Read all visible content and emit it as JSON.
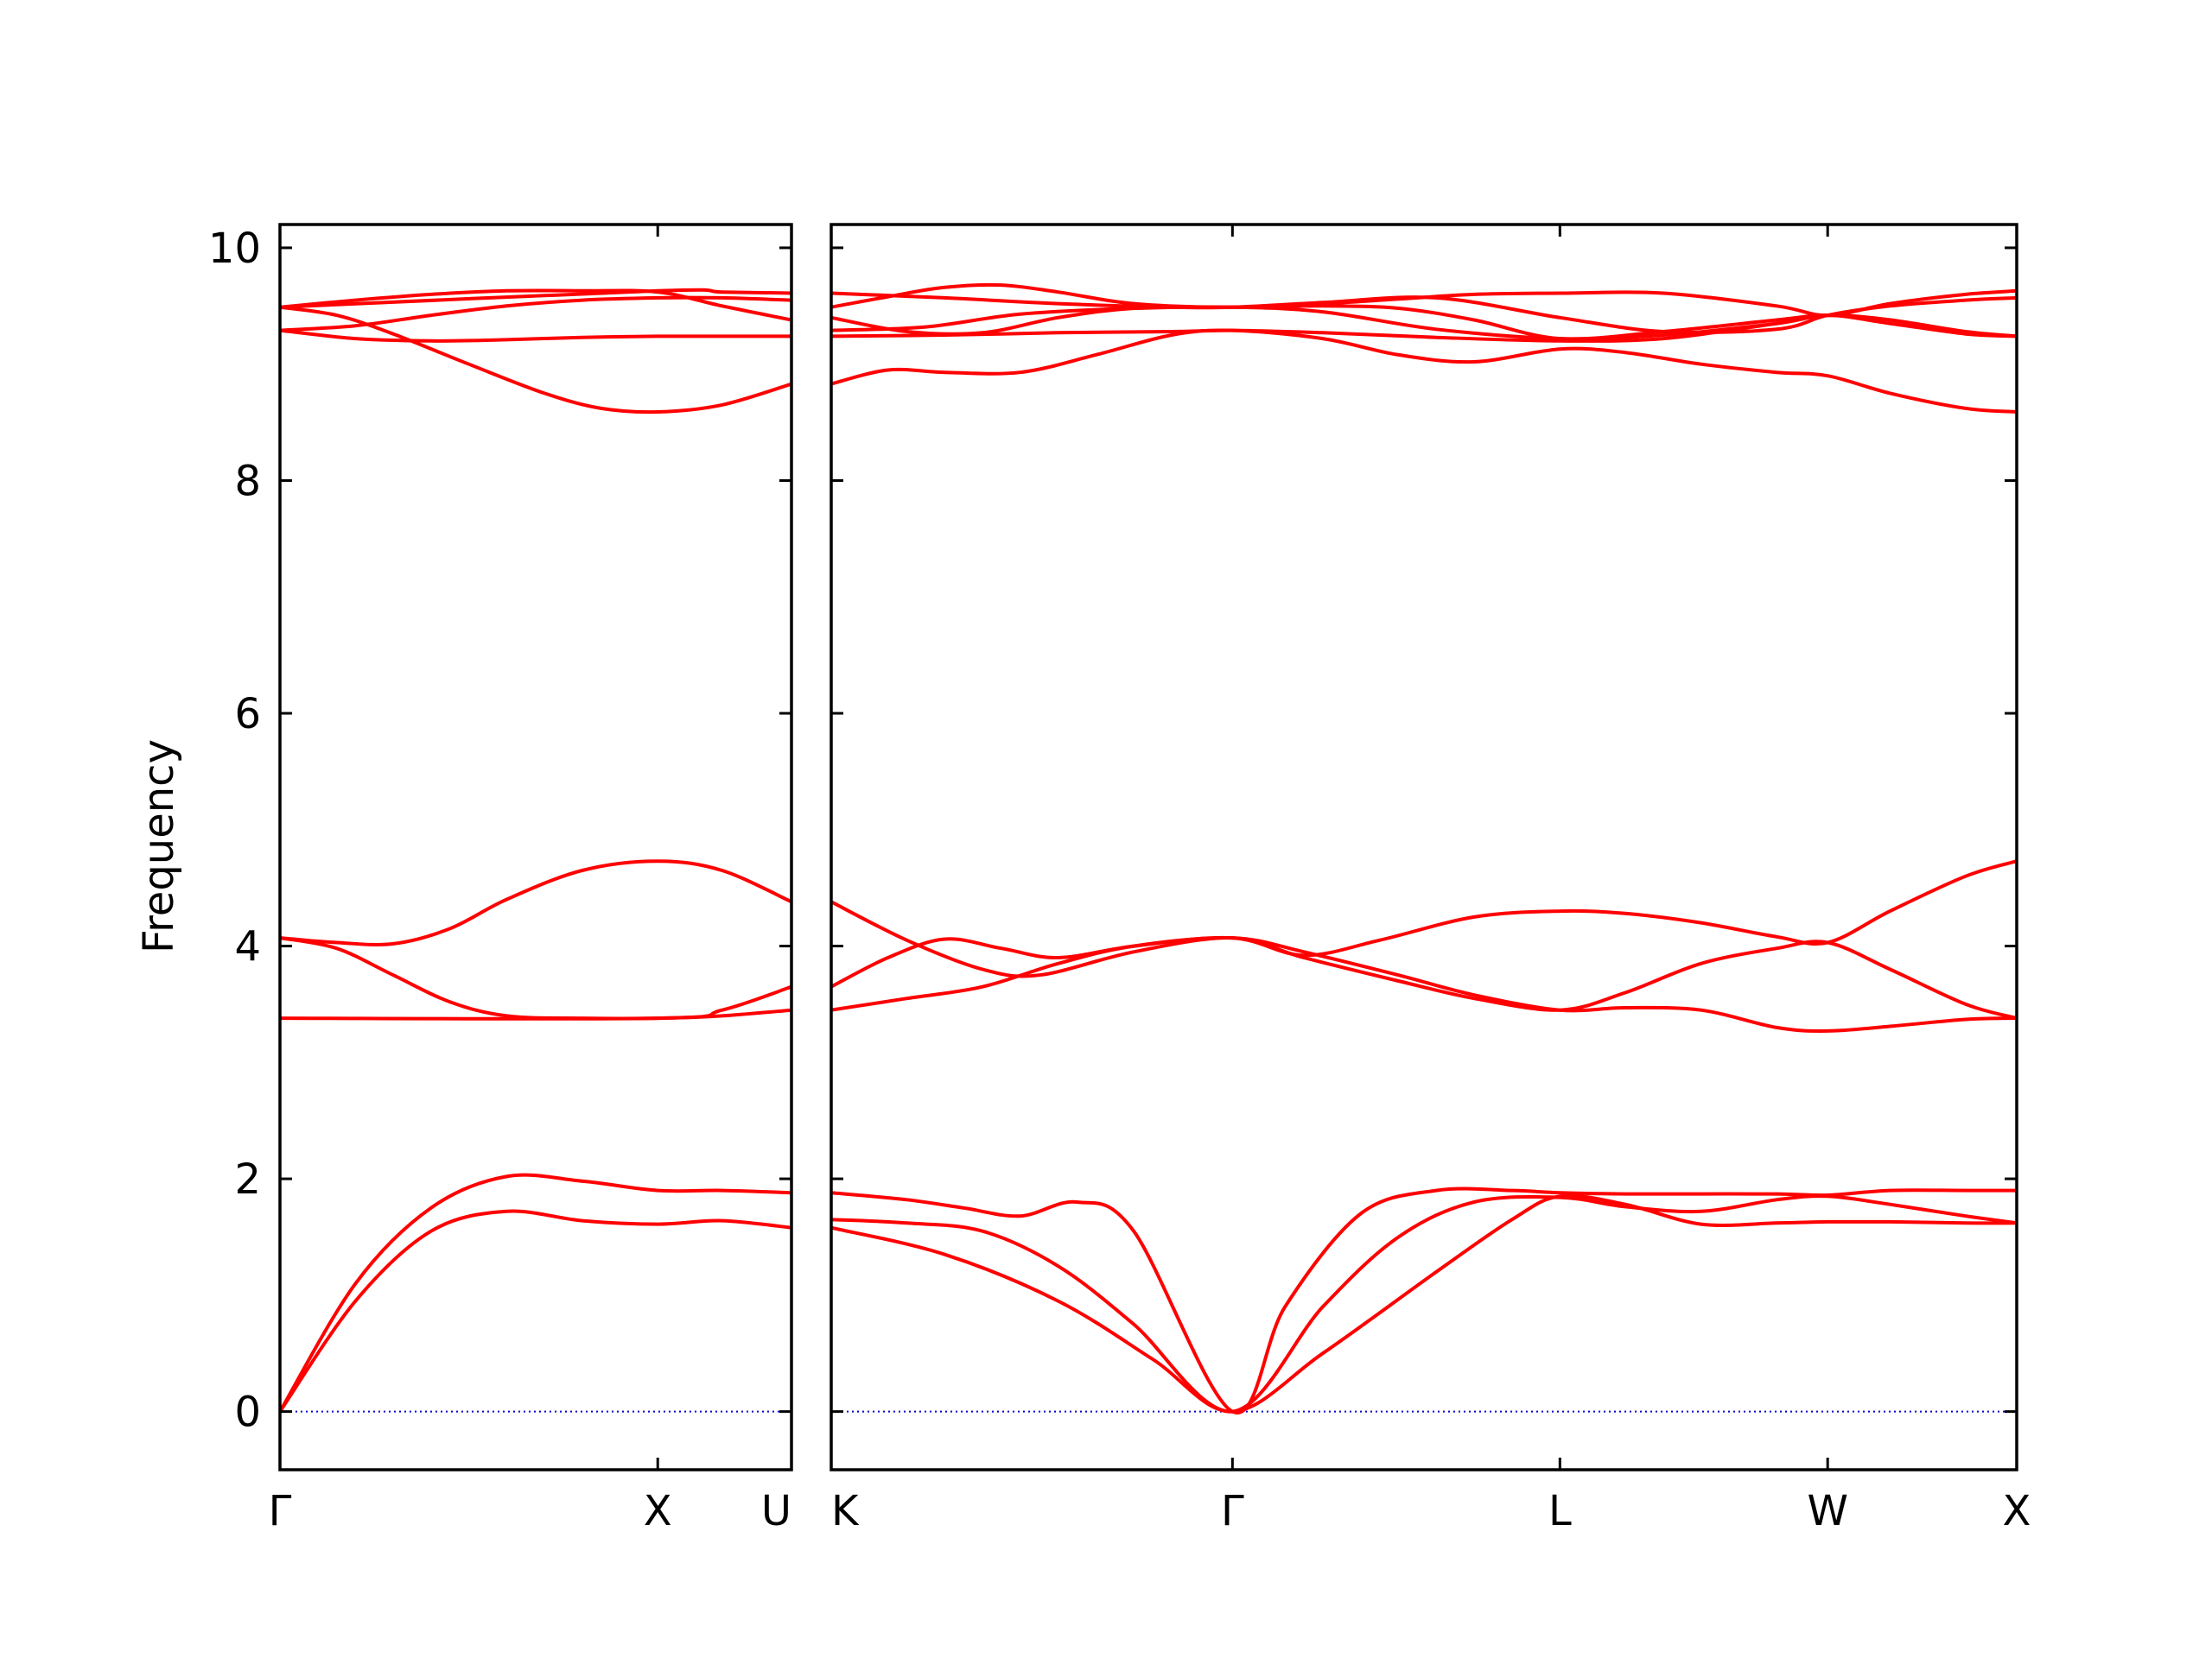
{
  "chart_data": {
    "type": "line",
    "ylabel": "Frequency",
    "ylim": [
      -0.5,
      10.2
    ],
    "y_ticks": [
      "0",
      "2",
      "4",
      "6",
      "8",
      "10"
    ],
    "grid": false,
    "line_color": "#ff0000",
    "zero_line_color": "#0000cc",
    "panels": [
      {
        "x_ticks": [
          {
            "label": "Γ",
            "x": 0.0
          },
          {
            "label": "X",
            "x": 1.0
          },
          {
            "label": "U",
            "x": 1.354
          }
        ],
        "xlim": [
          0,
          1.354
        ],
        "series": [
          {
            "x": [
              0,
              0.2,
              0.4,
              0.6,
              0.8,
              1.0,
              1.17,
              1.354
            ],
            "y": [
              0,
              0.95,
              1.55,
              1.72,
              1.64,
              1.61,
              1.64,
              1.58
            ]
          },
          {
            "x": [
              0,
              0.2,
              0.4,
              0.6,
              0.8,
              1.0,
              1.17,
              1.354
            ],
            "y": [
              0,
              1.1,
              1.75,
              2.02,
              1.98,
              1.9,
              1.9,
              1.88
            ]
          },
          {
            "x": [
              0,
              0.15,
              0.3,
              0.45,
              0.6,
              0.8,
              1.0,
              1.17,
              1.354
            ],
            "y": [
              4.07,
              3.98,
              3.75,
              3.52,
              3.4,
              3.38,
              3.38,
              3.4,
              3.45
            ]
          },
          {
            "x": [
              0,
              0.15,
              0.3,
              0.45,
              0.6,
              0.8,
              1.0,
              1.17,
              1.354
            ],
            "y": [
              4.07,
              4.03,
              4.02,
              4.15,
              4.4,
              4.65,
              4.73,
              4.65,
              4.38
            ]
          },
          {
            "x": [
              0,
              1.0,
              1.17,
              1.354
            ],
            "y": [
              3.38,
              3.38,
              3.45,
              3.65
            ]
          },
          {
            "x": [
              0,
              0.15,
              0.3,
              0.5,
              0.7,
              0.85,
              1.0,
              1.17,
              1.354
            ],
            "y": [
              9.49,
              9.42,
              9.26,
              9.0,
              8.75,
              8.62,
              8.59,
              8.65,
              8.83
            ]
          },
          {
            "x": [
              0,
              0.2,
              0.4,
              0.6,
              0.8,
              1.0,
              1.17,
              1.354
            ],
            "y": [
              9.29,
              9.22,
              9.2,
              9.21,
              9.23,
              9.24,
              9.24,
              9.24
            ]
          },
          {
            "x": [
              0,
              0.2,
              0.4,
              0.6,
              0.8,
              1.0,
              1.17,
              1.354
            ],
            "y": [
              9.29,
              9.33,
              9.42,
              9.5,
              9.55,
              9.57,
              9.57,
              9.55
            ]
          },
          {
            "x": [
              0,
              0.2,
              0.4,
              0.6,
              0.8,
              1.0,
              1.17,
              1.354
            ],
            "y": [
              9.49,
              9.55,
              9.6,
              9.63,
              9.63,
              9.62,
              9.5,
              9.38
            ]
          },
          {
            "x": [
              0,
              1.0,
              1.17,
              1.354
            ],
            "y": [
              9.49,
              9.63,
              9.62,
              9.61
            ]
          }
        ]
      },
      {
        "x_ticks": [
          {
            "label": "K",
            "x": 0.0
          },
          {
            "label": "Γ",
            "x": 1.061
          },
          {
            "label": "L",
            "x": 1.927
          },
          {
            "label": "W",
            "x": 2.635
          },
          {
            "label": "X",
            "x": 3.135
          }
        ],
        "xlim": [
          0,
          3.135
        ],
        "series": [
          {
            "x": [
              0,
              0.3,
              0.6,
              0.85,
              1.061,
              1.3,
              1.6,
              1.8,
              1.927,
              2.1,
              2.3,
              2.5,
              2.635,
              2.8,
              3.0,
              3.135
            ],
            "y": [
              1.58,
              1.35,
              0.95,
              0.45,
              0,
              0.5,
              1.2,
              1.65,
              1.85,
              1.78,
              1.61,
              1.62,
              1.63,
              1.63,
              1.62,
              1.62
            ]
          },
          {
            "x": [
              0,
              0.2,
              0.4,
              0.6,
              0.8,
              1.061,
              1.3,
              1.5,
              1.7,
              1.927,
              2.1,
              2.3,
              2.5,
              2.635,
              2.8,
              3.0,
              3.135
            ],
            "y": [
              1.65,
              1.62,
              1.55,
              1.25,
              0.75,
              0,
              0.9,
              1.5,
              1.8,
              1.84,
              1.76,
              1.72,
              1.82,
              1.85,
              1.78,
              1.68,
              1.62
            ]
          },
          {
            "x": [
              0,
              0.2,
              0.35,
              0.5,
              0.65,
              0.8,
              1.061,
              1.2,
              1.4,
              1.6,
              1.8,
              1.927,
              2.1,
              2.3,
              2.5,
              2.635,
              2.8,
              3.0,
              3.135
            ],
            "y": [
              1.88,
              1.82,
              1.75,
              1.68,
              1.8,
              1.55,
              0,
              0.9,
              1.7,
              1.9,
              1.9,
              1.88,
              1.87,
              1.87,
              1.87,
              1.86,
              1.9,
              1.9,
              1.9
            ]
          },
          {
            "x": [
              0,
              0.2,
              0.4,
              0.6,
              0.8,
              1.061,
              1.25,
              1.5,
              1.7,
              1.927,
              2.1,
              2.3,
              2.5,
              2.635,
              2.8,
              3.0,
              3.135
            ],
            "y": [
              3.45,
              3.55,
              3.65,
              3.85,
              4.0,
              4.07,
              3.95,
              3.75,
              3.58,
              3.45,
              3.47,
              3.45,
              3.3,
              3.27,
              3.31,
              3.37,
              3.38
            ]
          },
          {
            "x": [
              0,
              0.15,
              0.3,
              0.45,
              0.6,
              0.8,
              1.061,
              1.25,
              1.45,
              1.7,
              1.927,
              2.1,
              2.3,
              2.5,
              2.635,
              2.8,
              3.0,
              3.135
            ],
            "y": [
              3.65,
              3.9,
              4.06,
              3.98,
              3.9,
              4.0,
              4.07,
              3.92,
              4.05,
              4.25,
              4.3,
              4.28,
              4.2,
              4.08,
              4.03,
              4.3,
              4.6,
              4.73
            ]
          },
          {
            "x": [
              0,
              0.2,
              0.4,
              0.55,
              0.8,
              1.061,
              1.25,
              1.5,
              1.7,
              1.927,
              2.1,
              2.3,
              2.5,
              2.635,
              2.8,
              3.0,
              3.135
            ],
            "y": [
              4.38,
              4.05,
              3.8,
              3.75,
              3.95,
              4.07,
              3.9,
              3.7,
              3.55,
              3.45,
              3.6,
              3.85,
              3.98,
              4.03,
              3.8,
              3.5,
              3.38
            ]
          },
          {
            "x": [
              0,
              0.15,
              0.3,
              0.5,
              0.7,
              0.9,
              1.061,
              1.3,
              1.5,
              1.7,
              1.927,
              2.1,
              2.3,
              2.5,
              2.635,
              2.8,
              3.0,
              3.135
            ],
            "y": [
              8.83,
              8.95,
              8.93,
              8.93,
              9.08,
              9.25,
              9.29,
              9.22,
              9.08,
              9.02,
              9.13,
              9.1,
              9.0,
              8.93,
              8.9,
              8.75,
              8.62,
              8.59
            ]
          },
          {
            "x": [
              0,
              0.3,
              0.6,
              0.9,
              1.061,
              1.3,
              1.6,
              1.927,
              2.2,
              2.5,
              2.635,
              2.8,
              3.0,
              3.135
            ],
            "y": [
              9.24,
              9.25,
              9.27,
              9.28,
              9.29,
              9.27,
              9.23,
              9.2,
              9.22,
              9.35,
              9.42,
              9.35,
              9.26,
              9.24
            ]
          },
          {
            "x": [
              0,
              0.2,
              0.4,
              0.6,
              0.8,
              1.061,
              1.3,
              1.5,
              1.7,
              1.927,
              2.2,
              2.5,
              2.635,
              2.8,
              3.0,
              3.135
            ],
            "y": [
              9.4,
              9.28,
              9.27,
              9.4,
              9.48,
              9.49,
              9.5,
              9.48,
              9.38,
              9.22,
              9.28,
              9.38,
              9.42,
              9.38,
              9.27,
              9.24
            ]
          },
          {
            "x": [
              0,
              0.15,
              0.3,
              0.45,
              0.6,
              0.8,
              1.061,
              1.3,
              1.5,
              1.7,
              1.927,
              2.2,
              2.5,
              2.635,
              2.8,
              3.0,
              3.135
            ],
            "y": [
              9.49,
              9.58,
              9.66,
              9.68,
              9.62,
              9.52,
              9.49,
              9.52,
              9.56,
              9.6,
              9.61,
              9.61,
              9.5,
              9.42,
              9.52,
              9.6,
              9.63
            ]
          },
          {
            "x": [
              0,
              0.3,
              0.6,
              0.9,
              1.061,
              1.3,
              1.6,
              1.927,
              2.2,
              2.5,
              2.635,
              2.8,
              3.0,
              3.135
            ],
            "y": [
              9.61,
              9.57,
              9.52,
              9.49,
              9.49,
              9.53,
              9.57,
              9.4,
              9.28,
              9.3,
              9.42,
              9.5,
              9.55,
              9.57
            ]
          },
          {
            "x": [
              0,
              0.25,
              0.5,
              0.8,
              1.061,
              1.3,
              1.6,
              1.927,
              2.2,
              2.5,
              2.635,
              2.8,
              3.0,
              3.135
            ],
            "y": [
              9.29,
              9.32,
              9.43,
              9.48,
              9.49,
              9.45,
              9.3,
              9.22,
              9.25,
              9.35,
              9.42,
              9.38,
              9.28,
              9.24
            ]
          }
        ]
      }
    ]
  }
}
